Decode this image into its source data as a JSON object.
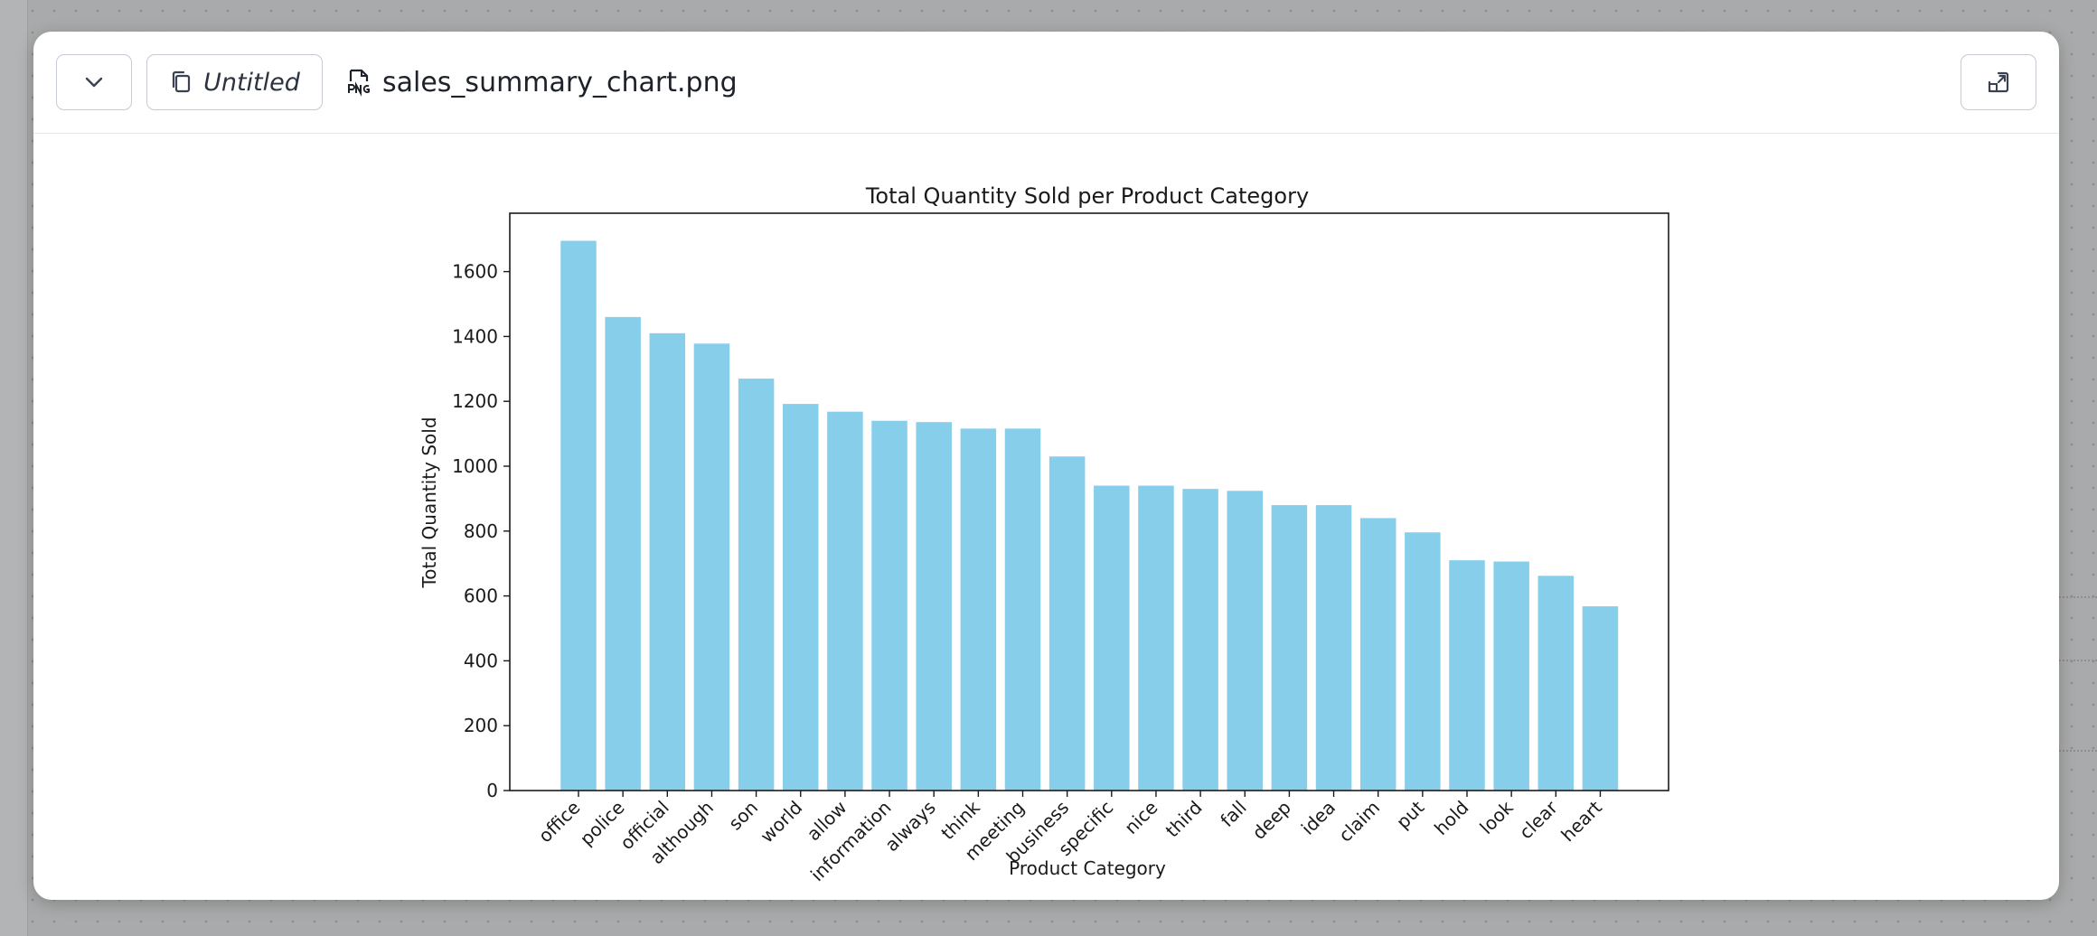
{
  "header": {
    "collapse_icon": "chevron-down-icon",
    "title_icon": "copy-icon",
    "title": "Untitled",
    "file_icon": "png-file-icon",
    "file_name": "sales_summary_chart.png",
    "expand_icon": "collapse-window-icon"
  },
  "colors": {
    "bar": "#87ceeb",
    "background": "#a9aaab",
    "border": "#c5cad3"
  },
  "chart_data": {
    "type": "bar",
    "title": "Total Quantity Sold per Product Category",
    "xlabel": "Product Category",
    "ylabel": "Total Quantity Sold",
    "ylim": [
      0,
      1780
    ],
    "yticks": [
      0,
      200,
      400,
      600,
      800,
      1000,
      1200,
      1400,
      1600
    ],
    "grid": false,
    "categories": [
      "office",
      "police",
      "official",
      "although",
      "son",
      "world",
      "allow",
      "information",
      "always",
      "think",
      "meeting",
      "business",
      "specific",
      "nice",
      "third",
      "fall",
      "deep",
      "idea",
      "claim",
      "put",
      "hold",
      "look",
      "clear",
      "heart"
    ],
    "values": [
      1695,
      1460,
      1410,
      1378,
      1270,
      1192,
      1168,
      1140,
      1136,
      1116,
      1116,
      1030,
      940,
      940,
      930,
      924,
      880,
      880,
      840,
      796,
      710,
      706,
      662,
      568
    ]
  }
}
